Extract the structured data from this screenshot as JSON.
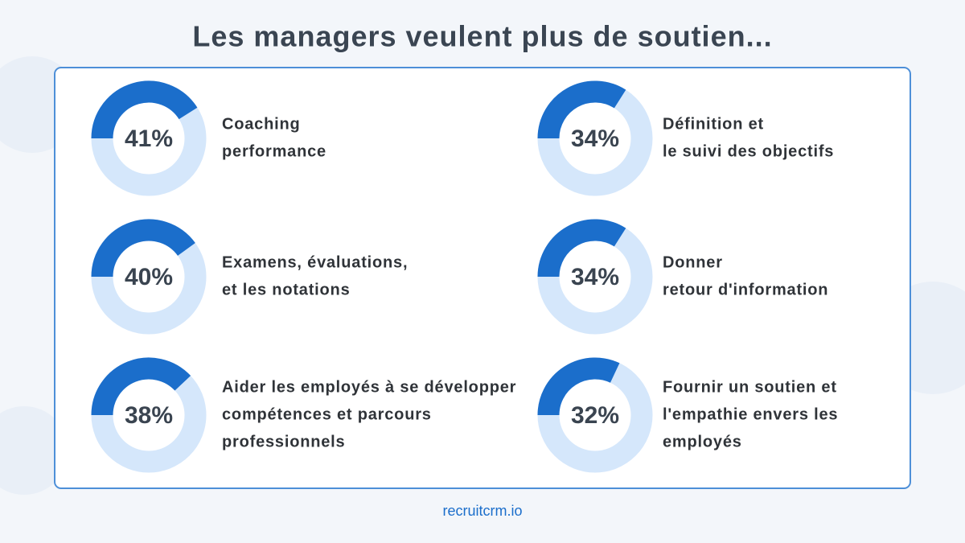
{
  "title": "Les managers veulent plus de soutien...",
  "chart_data": [
    {
      "type": "donut",
      "values": [
        41
      ],
      "value_labels": [
        "41%"
      ],
      "label_lines": [
        "Coaching",
        "performance"
      ],
      "color": "#1b6ecb",
      "track_color": "#d5e7fb"
    },
    {
      "type": "donut",
      "values": [
        34
      ],
      "value_labels": [
        "34%"
      ],
      "label_lines": [
        "Définition et",
        "le suivi des objectifs"
      ],
      "color": "#1b6ecb",
      "track_color": "#d5e7fb"
    },
    {
      "type": "donut",
      "values": [
        40
      ],
      "value_labels": [
        "40%"
      ],
      "label_lines": [
        "Examens, évaluations,",
        "et les notations"
      ],
      "color": "#1b6ecb",
      "track_color": "#d5e7fb"
    },
    {
      "type": "donut",
      "values": [
        34
      ],
      "value_labels": [
        "34%"
      ],
      "label_lines": [
        "Donner",
        "retour d'information"
      ],
      "color": "#1b6ecb",
      "track_color": "#d5e7fb"
    },
    {
      "type": "donut",
      "values": [
        38
      ],
      "value_labels": [
        "38%"
      ],
      "label_lines": [
        "Aider les employés à se développer",
        "compétences et parcours",
        "professionnels"
      ],
      "color": "#1b6ecb",
      "track_color": "#d5e7fb"
    },
    {
      "type": "donut",
      "values": [
        32
      ],
      "value_labels": [
        "32%"
      ],
      "label_lines": [
        "Fournir un soutien et",
        "l'empathie envers les",
        "employés"
      ],
      "color": "#1b6ecb",
      "track_color": "#d5e7fb"
    }
  ],
  "footer": "recruitcrm.io"
}
